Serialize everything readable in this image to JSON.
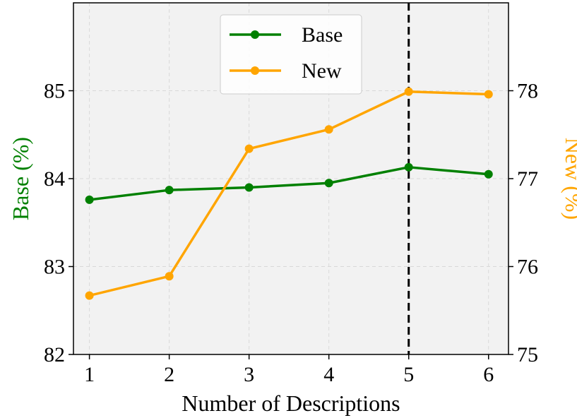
{
  "chart_data": {
    "type": "line",
    "xlabel": "Number of Descriptions",
    "x": [
      1,
      2,
      3,
      4,
      5,
      6
    ],
    "x_ticks": [
      "1",
      "2",
      "3",
      "4",
      "5",
      "6"
    ],
    "xlim": [
      0.8,
      6.25
    ],
    "y_left": {
      "label": "Base (%)",
      "color": "#008000",
      "lim": [
        82,
        86
      ],
      "ticks": [
        "82",
        "83",
        "84",
        "85"
      ]
    },
    "y_right": {
      "label": "New (%)",
      "color": "#FFA500",
      "lim": [
        75,
        79
      ],
      "ticks": [
        "75",
        "76",
        "77",
        "78"
      ]
    },
    "series": [
      {
        "name": "Base",
        "axis": "left",
        "color": "#008000",
        "values": [
          83.76,
          83.87,
          83.9,
          83.95,
          84.13,
          84.05
        ]
      },
      {
        "name": "New",
        "axis": "right",
        "color": "#FFA500",
        "values": [
          75.67,
          75.89,
          77.34,
          77.56,
          77.99,
          77.96
        ]
      }
    ],
    "vline": {
      "x": 5,
      "style": "dashed",
      "color": "#000000"
    },
    "grid": true,
    "legend": {
      "placement": "top-center"
    },
    "background": "#F2F2F2"
  }
}
